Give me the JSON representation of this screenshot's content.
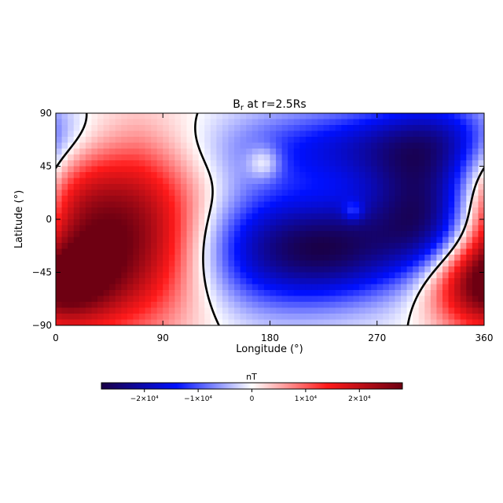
{
  "chart_data": {
    "type": "heatmap",
    "title": "B",
    "title_subscript": "r",
    "title_suffix": " at r=2.5Rs",
    "xlabel": "Longitude (°)",
    "ylabel": "Latitude (°)",
    "xlim": [
      0,
      360
    ],
    "ylim": [
      -90,
      90
    ],
    "xticks": [
      0,
      90,
      180,
      270,
      360
    ],
    "yticks": [
      90,
      45,
      0,
      -45,
      -90
    ],
    "xtick_labels": [
      "0",
      "90",
      "180",
      "270",
      "360"
    ],
    "ytick_labels": [
      "90",
      "45",
      "0",
      "−45",
      "−90"
    ],
    "colormap": [
      "#1a0046",
      "#0010ff",
      "#ffffff",
      "#ff1a1a",
      "#6e0012"
    ],
    "contour_color": "#000000",
    "colorbar": {
      "label": "nT",
      "range": [
        -28000,
        28000
      ],
      "ticks": [
        -20000,
        -10000,
        0,
        10000,
        20000
      ],
      "tick_labels": [
        "−2×10⁴",
        "−1×10⁴",
        "0",
        "1×10⁴",
        "2×10⁴"
      ]
    },
    "sources": [
      {
        "lon": 55,
        "lat": -12,
        "strength": 27000,
        "sigma_lon": 48,
        "sigma_lat": 55
      },
      {
        "lon": 8,
        "lat": 0,
        "strength": 7000,
        "sigma_lon": 25,
        "sigma_lat": 60
      },
      {
        "lon": 355,
        "lat": -55,
        "strength": 22000,
        "sigma_lon": 35,
        "sigma_lat": 25
      },
      {
        "lon": 180,
        "lat": -25,
        "strength": -20000,
        "sigma_lon": 45,
        "sigma_lat": 35
      },
      {
        "lon": 310,
        "lat": 0,
        "strength": -26000,
        "sigma_lon": 35,
        "sigma_lat": 40
      },
      {
        "lon": 250,
        "lat": 60,
        "strength": -15000,
        "sigma_lon": 80,
        "sigma_lat": 25
      },
      {
        "lon": 330,
        "lat": 75,
        "strength": -10000,
        "sigma_lon": 45,
        "sigma_lat": 25
      },
      {
        "lon": 240,
        "lat": -25,
        "strength": -16000,
        "sigma_lon": 35,
        "sigma_lat": 30
      },
      {
        "lon": 175,
        "lat": 48,
        "strength": 9000,
        "sigma_lon": 10,
        "sigma_lat": 10
      },
      {
        "lon": 250,
        "lat": 7,
        "strength": 8000,
        "sigma_lon": 6,
        "sigma_lat": 6
      }
    ]
  }
}
